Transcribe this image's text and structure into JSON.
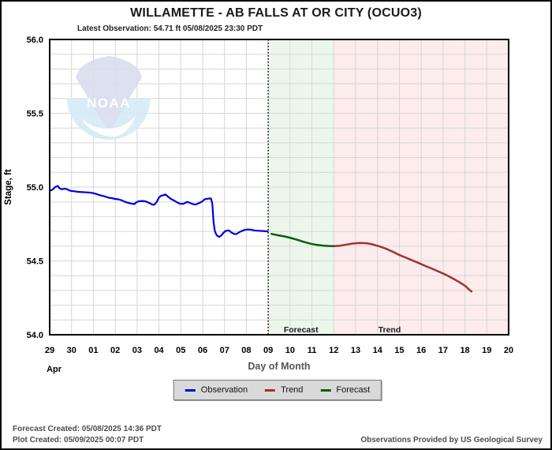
{
  "header": {
    "title": "WILLAMETTE - AB FALLS AT OR CITY  (OCUO3)",
    "subtitle": "Latest Observation: 54.71 ft 05/08/2025 23:30 PDT"
  },
  "legend": {
    "items": [
      {
        "label": "Observation",
        "color": "#0000e0"
      },
      {
        "label": "Trend",
        "color": "#a03232"
      },
      {
        "label": "Forecast",
        "color": "#0d5c0d"
      }
    ]
  },
  "footer": {
    "forecast_created": "Forecast Created: 05/08/2025 14:36 PDT",
    "plot_created": "Plot Created: 05/09/2025 00:07 PDT",
    "source": "Observations Provided by US Geological Survey"
  },
  "watermark": {
    "text": "NOAA"
  },
  "chart_data": {
    "type": "line",
    "title": "WILLAMETTE - AB FALLS AT OR CITY  (OCUO3)",
    "xlabel": "Day of Month",
    "ylabel": "Stage, ft",
    "ylim": [
      54.0,
      56.0
    ],
    "x_domain": [
      0,
      21
    ],
    "grid": true,
    "y_grid_step": 0.1,
    "grid_color": "#d6d6d6",
    "legend_position": "bottom",
    "y_ticks": [
      {
        "value": 56.0,
        "label": "56.0"
      },
      {
        "value": 55.5,
        "label": "55.5"
      },
      {
        "value": 55.0,
        "label": "55.0"
      },
      {
        "value": 54.5,
        "label": "54.5"
      },
      {
        "value": 54.0,
        "label": "54.0"
      }
    ],
    "x_tick_labels": [
      "29",
      "30",
      "01",
      "02",
      "03",
      "04",
      "05",
      "06",
      "07",
      "08",
      "09",
      "10",
      "11",
      "12",
      "13",
      "14",
      "15",
      "16",
      "17",
      "18",
      "19",
      "20"
    ],
    "x_month_label": {
      "label": "Apr",
      "day": 0.2
    },
    "now_line_day": 10,
    "bands": [
      {
        "name": "forecast",
        "label": "Forecast",
        "from_day": 10,
        "to_day": 13,
        "color": "#ecf7ec",
        "label_day": 11.5
      },
      {
        "name": "trend",
        "label": "Trend",
        "from_day": 13,
        "to_day": 21,
        "color": "#fcecec",
        "label_day": 15.55
      }
    ],
    "series": [
      {
        "name": "Observation",
        "color": "#0000e0",
        "width": 2.2,
        "points": [
          [
            0,
            54.975
          ],
          [
            0.12,
            54.982
          ],
          [
            0.25,
            55.0
          ],
          [
            0.37,
            55.008
          ],
          [
            0.45,
            54.992
          ],
          [
            0.55,
            54.985
          ],
          [
            0.68,
            54.99
          ],
          [
            0.8,
            54.985
          ],
          [
            0.95,
            54.975
          ],
          [
            1.1,
            54.972
          ],
          [
            1.3,
            54.968
          ],
          [
            1.5,
            54.966
          ],
          [
            1.7,
            54.964
          ],
          [
            1.9,
            54.962
          ],
          [
            2.1,
            54.955
          ],
          [
            2.3,
            54.945
          ],
          [
            2.5,
            54.938
          ],
          [
            2.7,
            54.928
          ],
          [
            2.85,
            54.925
          ],
          [
            3.0,
            54.92
          ],
          [
            3.15,
            54.917
          ],
          [
            3.3,
            54.91
          ],
          [
            3.45,
            54.9
          ],
          [
            3.6,
            54.893
          ],
          [
            3.75,
            54.888
          ],
          [
            3.88,
            54.885
          ],
          [
            3.97,
            54.898
          ],
          [
            4.1,
            54.905
          ],
          [
            4.25,
            54.906
          ],
          [
            4.4,
            54.903
          ],
          [
            4.55,
            54.893
          ],
          [
            4.7,
            54.882
          ],
          [
            4.78,
            54.88
          ],
          [
            4.9,
            54.9
          ],
          [
            5.0,
            54.93
          ],
          [
            5.1,
            54.941
          ],
          [
            5.2,
            54.945
          ],
          [
            5.3,
            54.95
          ],
          [
            5.42,
            54.935
          ],
          [
            5.55,
            54.92
          ],
          [
            5.7,
            54.908
          ],
          [
            5.85,
            54.895
          ],
          [
            5.95,
            54.888
          ],
          [
            6.1,
            54.886
          ],
          [
            6.2,
            54.893
          ],
          [
            6.3,
            54.9
          ],
          [
            6.42,
            54.893
          ],
          [
            6.55,
            54.885
          ],
          [
            6.68,
            54.882
          ],
          [
            6.8,
            54.89
          ],
          [
            6.95,
            54.9
          ],
          [
            7.1,
            54.918
          ],
          [
            7.25,
            54.922
          ],
          [
            7.38,
            54.923
          ],
          [
            7.44,
            54.89
          ],
          [
            7.5,
            54.76
          ],
          [
            7.56,
            54.7
          ],
          [
            7.65,
            54.672
          ],
          [
            7.75,
            54.663
          ],
          [
            7.85,
            54.672
          ],
          [
            7.95,
            54.69
          ],
          [
            8.05,
            54.703
          ],
          [
            8.2,
            54.707
          ],
          [
            8.32,
            54.692
          ],
          [
            8.45,
            54.682
          ],
          [
            8.55,
            54.683
          ],
          [
            8.68,
            54.695
          ],
          [
            8.8,
            54.703
          ],
          [
            8.92,
            54.71
          ],
          [
            9.05,
            54.713
          ],
          [
            9.2,
            54.712
          ],
          [
            9.35,
            54.707
          ],
          [
            9.5,
            54.705
          ],
          [
            9.7,
            54.703
          ],
          [
            9.98,
            54.7
          ]
        ]
      },
      {
        "name": "Forecast",
        "color": "#0d5c0d",
        "width": 2.5,
        "points": [
          [
            10.15,
            54.683
          ],
          [
            10.45,
            54.674
          ],
          [
            10.75,
            54.666
          ],
          [
            11.05,
            54.655
          ],
          [
            11.35,
            54.642
          ],
          [
            11.65,
            54.628
          ],
          [
            11.95,
            54.616
          ],
          [
            12.25,
            54.608
          ],
          [
            12.55,
            54.603
          ],
          [
            12.8,
            54.601
          ],
          [
            13.04,
            54.6
          ]
        ]
      },
      {
        "name": "Trend",
        "color": "#a03232",
        "width": 2.5,
        "points": [
          [
            13.04,
            54.6
          ],
          [
            13.3,
            54.603
          ],
          [
            13.6,
            54.611
          ],
          [
            13.9,
            54.618
          ],
          [
            14.2,
            54.622
          ],
          [
            14.5,
            54.62
          ],
          [
            14.75,
            54.613
          ],
          [
            15.1,
            54.598
          ],
          [
            15.4,
            54.582
          ],
          [
            15.7,
            54.562
          ],
          [
            16.0,
            54.54
          ],
          [
            16.3,
            54.522
          ],
          [
            16.6,
            54.503
          ],
          [
            16.9,
            54.485
          ],
          [
            17.2,
            54.465
          ],
          [
            17.5,
            54.447
          ],
          [
            17.8,
            54.428
          ],
          [
            18.1,
            54.408
          ],
          [
            18.4,
            54.385
          ],
          [
            18.7,
            54.36
          ],
          [
            19.0,
            54.332
          ],
          [
            19.15,
            54.312
          ],
          [
            19.3,
            54.293
          ]
        ]
      }
    ]
  }
}
